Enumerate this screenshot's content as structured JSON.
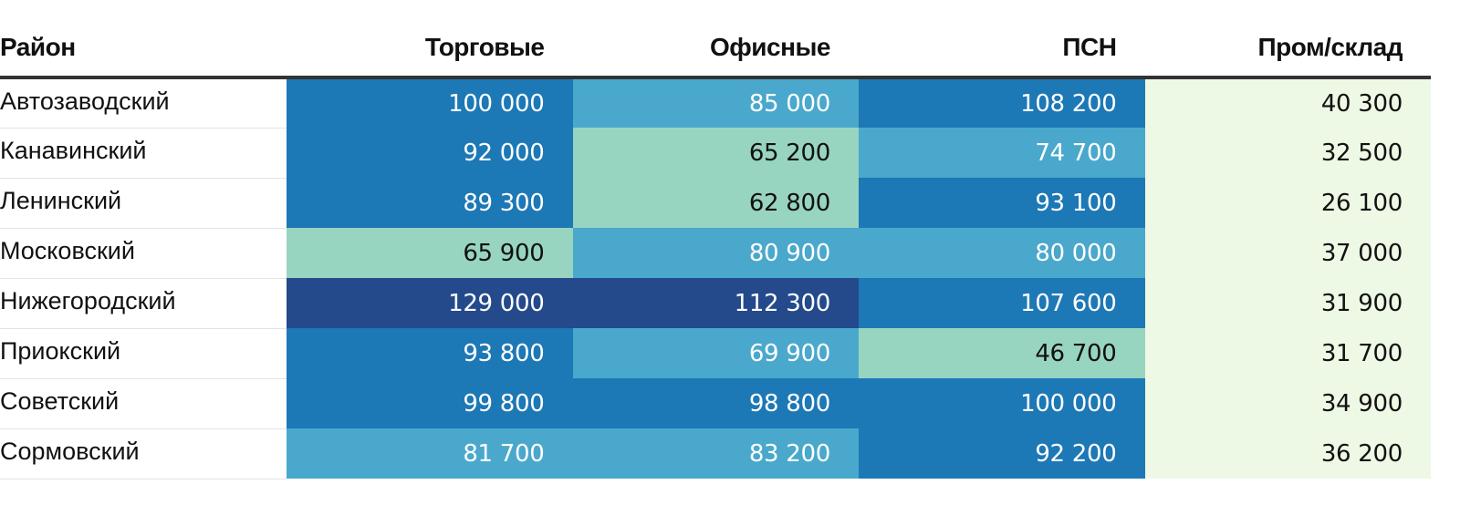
{
  "chart_data": {
    "type": "table",
    "columns": [
      "Район",
      "Торговые",
      "Офисные",
      "ПСН",
      "Пром/склад"
    ],
    "rows": [
      {
        "district": "Автозаводский",
        "values": [
          "100 000",
          "85 000",
          "108 200",
          "40 300"
        ],
        "colors": [
          "#1d78b6",
          "#4aa8cc",
          "#1d78b6",
          "#edf8e5"
        ]
      },
      {
        "district": "Канавинский",
        "values": [
          "92 000",
          "65 200",
          "74 700",
          "32 500"
        ],
        "colors": [
          "#1d78b6",
          "#98d5c0",
          "#4aa8cc",
          "#edf8e5"
        ]
      },
      {
        "district": "Ленинский",
        "values": [
          "89 300",
          "62 800",
          "93 100",
          "26 100"
        ],
        "colors": [
          "#1d78b6",
          "#98d5c0",
          "#1d78b6",
          "#edf8e5"
        ]
      },
      {
        "district": "Московский",
        "values": [
          "65 900",
          "80 900",
          "80 000",
          "37 000"
        ],
        "colors": [
          "#98d5c0",
          "#4aa8cc",
          "#4aa8cc",
          "#edf8e5"
        ]
      },
      {
        "district": "Нижегородский",
        "values": [
          "129 000",
          "112 300",
          "107 600",
          "31 900"
        ],
        "colors": [
          "#244a8c",
          "#244a8c",
          "#1d78b6",
          "#edf8e5"
        ]
      },
      {
        "district": "Приокский",
        "values": [
          "93 800",
          "69 900",
          "46 700",
          "31 700"
        ],
        "colors": [
          "#1d78b6",
          "#4aa8cc",
          "#98d5c0",
          "#edf8e5"
        ]
      },
      {
        "district": "Советский",
        "values": [
          "99 800",
          "98 800",
          "100 000",
          "34 900"
        ],
        "colors": [
          "#1d78b6",
          "#1d78b6",
          "#1d78b6",
          "#edf8e5"
        ]
      },
      {
        "district": "Сормовский",
        "values": [
          "81 700",
          "83 200",
          "92 200",
          "36 200"
        ],
        "colors": [
          "#4aa8cc",
          "#4aa8cc",
          "#1d78b6",
          "#edf8e5"
        ]
      }
    ],
    "palette": {
      "darkest": "#244a8c",
      "dark": "#1d78b6",
      "medium": "#4aa8cc",
      "light": "#98d5c0",
      "lightest": "#edf8e5"
    }
  }
}
